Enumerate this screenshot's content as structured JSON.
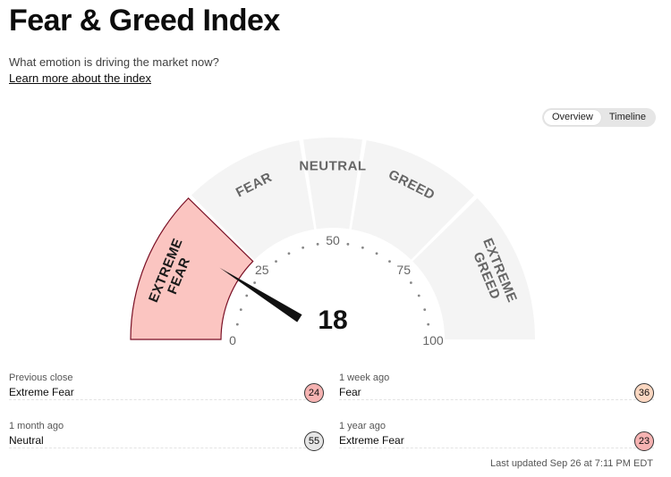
{
  "header": {
    "title": "Fear & Greed Index",
    "subtitle": "What emotion is driving the market now?",
    "learn_more": "Learn more about the index"
  },
  "view_toggle": {
    "options": [
      "Overview",
      "Timeline"
    ],
    "active": "Overview"
  },
  "gauge": {
    "value": 18,
    "value_text": "18",
    "min": 0,
    "max": 100,
    "ticks": [
      "0",
      "25",
      "50",
      "75",
      "100"
    ],
    "segments": [
      {
        "label_lines": [
          "EXTREME",
          "FEAR"
        ],
        "from": 0,
        "to": 25,
        "active": true
      },
      {
        "label_lines": [
          "FEAR"
        ],
        "from": 25,
        "to": 45,
        "active": false
      },
      {
        "label_lines": [
          "NEUTRAL"
        ],
        "from": 45,
        "to": 55,
        "active": false
      },
      {
        "label_lines": [
          "GREED"
        ],
        "from": 55,
        "to": 75,
        "active": false
      },
      {
        "label_lines": [
          "EXTREME",
          "GREED"
        ],
        "from": 75,
        "to": 100,
        "active": false
      }
    ],
    "colors": {
      "active_fill": "#fbc5c1",
      "active_stroke": "#7a0f24",
      "inactive_fill": "#f4f4f4",
      "label": "#666666",
      "active_label": "#1a1a1a",
      "needle": "#111111"
    }
  },
  "history": {
    "previous_close": {
      "label": "Previous close",
      "rating": "Extreme Fear",
      "score": "24"
    },
    "one_week": {
      "label": "1 week ago",
      "rating": "Fear",
      "score": "36"
    },
    "one_month": {
      "label": "1 month ago",
      "rating": "Neutral",
      "score": "55"
    },
    "one_year": {
      "label": "1 year ago",
      "rating": "Extreme Fear",
      "score": "23"
    }
  },
  "last_updated": "Last updated Sep 26 at 7:11 PM EDT"
}
